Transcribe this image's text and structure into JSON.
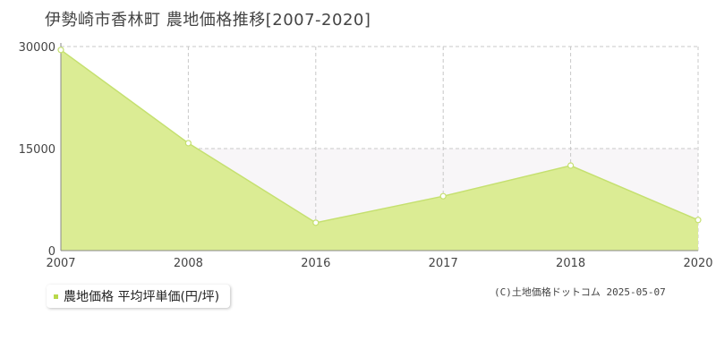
{
  "title": "伊勢崎市香林町 農地価格推移[2007-2020]",
  "legend": {
    "label": "農地価格 平均坪単価(円/坪)"
  },
  "credit": "(C)土地価格ドットコム 2025-05-07",
  "colors": {
    "area_fill": "#dbec94",
    "line": "#c5e070",
    "grid": "#c8c8c8",
    "band": "#f8f6f8",
    "legend_swatch": "#b8d84a"
  },
  "chart_data": {
    "type": "area",
    "title": "伊勢崎市香林町 農地価格推移[2007-2020]",
    "categories": [
      "2007",
      "2008",
      "2016",
      "2017",
      "2018",
      "2020"
    ],
    "series": [
      {
        "name": "農地価格 平均坪単価(円/坪)",
        "values": [
          29500,
          15800,
          4100,
          8000,
          12500,
          4500
        ]
      }
    ],
    "yticks": [
      "0",
      "15000",
      "30000"
    ],
    "ylim": [
      0,
      30000
    ],
    "grid": true,
    "legend_position": "bottom-left"
  }
}
